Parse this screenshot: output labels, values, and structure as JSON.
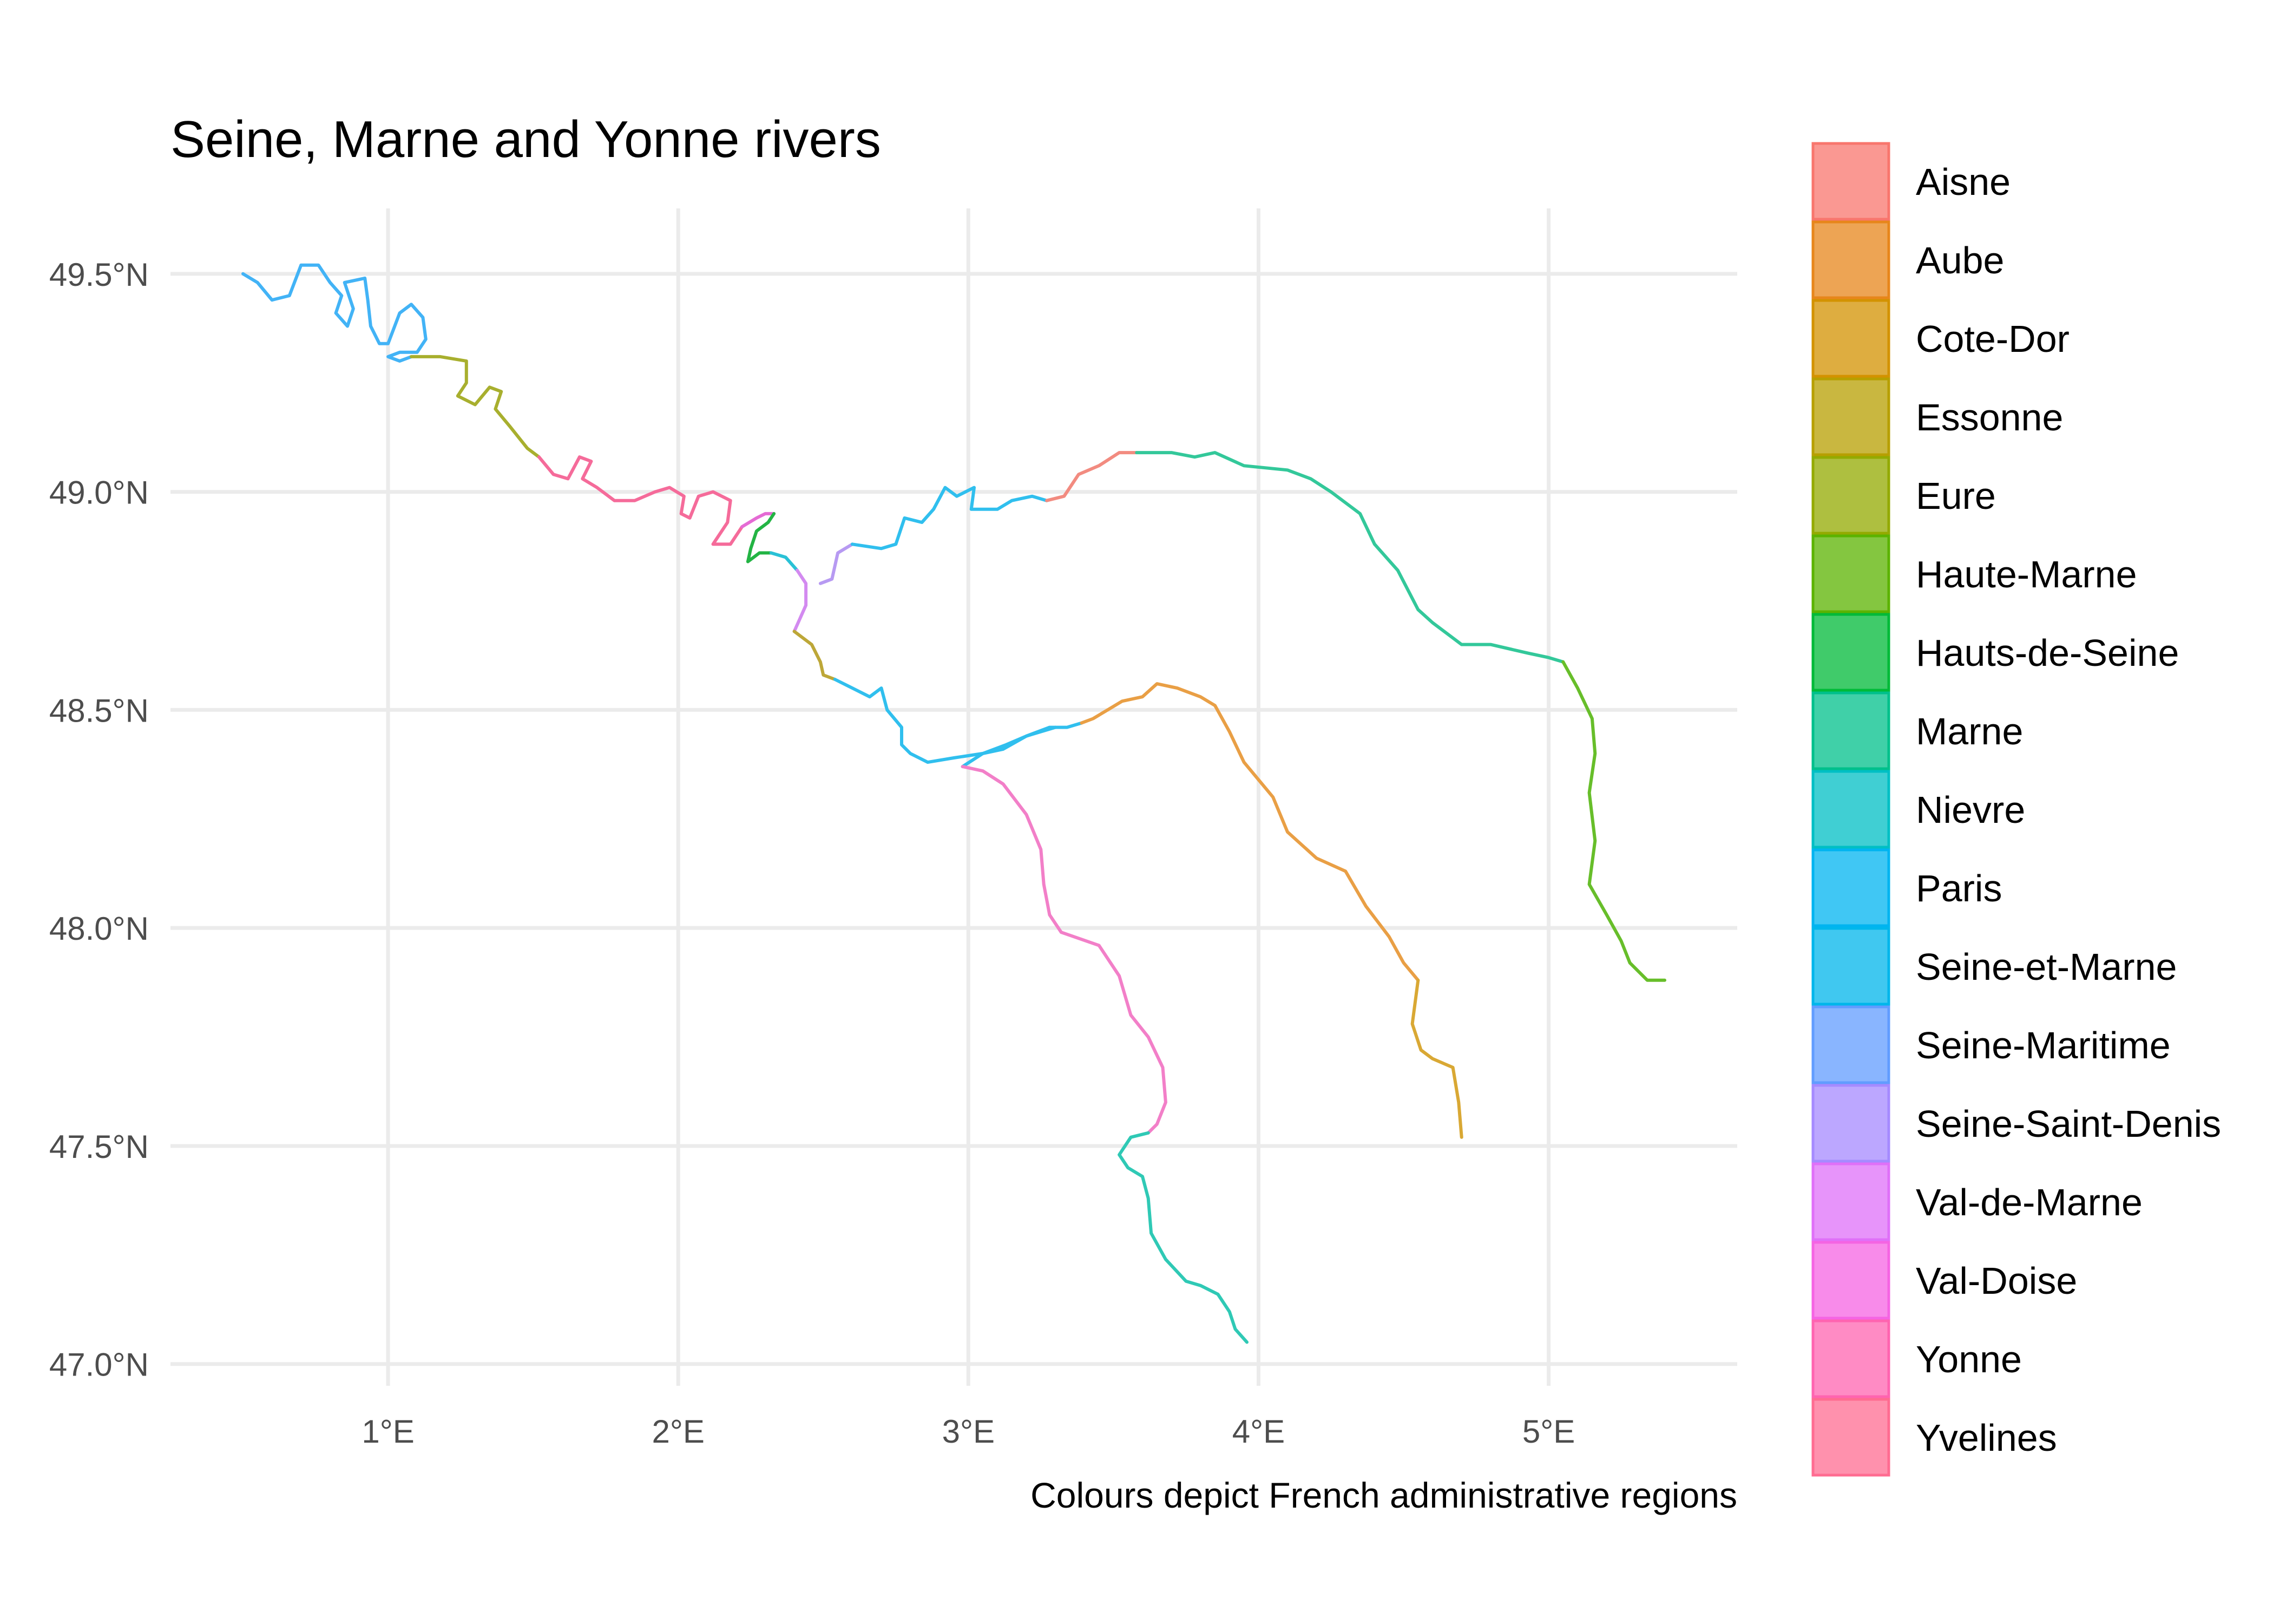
{
  "title": "Seine, Marne and Yonne rivers",
  "caption": "Colours depict French administrative regions",
  "chart_data": {
    "type": "map",
    "xlim": [
      0.25,
      5.65
    ],
    "ylim": [
      46.95,
      49.65
    ],
    "x_ticks": [
      {
        "value": 1,
        "label": "1°E"
      },
      {
        "value": 2,
        "label": "2°E"
      },
      {
        "value": 3,
        "label": "3°E"
      },
      {
        "value": 4,
        "label": "4°E"
      },
      {
        "value": 5,
        "label": "5°E"
      }
    ],
    "y_ticks": [
      {
        "value": 49.5,
        "label": "49.5°N"
      },
      {
        "value": 49.0,
        "label": "49.0°N"
      },
      {
        "value": 48.5,
        "label": "48.5°N"
      },
      {
        "value": 48.0,
        "label": "48.0°N"
      },
      {
        "value": 47.5,
        "label": "47.5°N"
      },
      {
        "value": 47.0,
        "label": "47.0°N"
      }
    ],
    "grid": true,
    "legend_position": "right",
    "legend": [
      {
        "name": "Aisne",
        "color": "#F8766D"
      },
      {
        "name": "Aube",
        "color": "#E7861B"
      },
      {
        "name": "Cote-Dor",
        "color": "#D39200"
      },
      {
        "name": "Essonne",
        "color": "#B79F00"
      },
      {
        "name": "Eure",
        "color": "#93AA00"
      },
      {
        "name": "Haute-Marne",
        "color": "#5BB300"
      },
      {
        "name": "Hauts-de-Seine",
        "color": "#00BA38"
      },
      {
        "name": "Marne",
        "color": "#00C08B"
      },
      {
        "name": "Nievre",
        "color": "#00BFC4"
      },
      {
        "name": "Paris",
        "color": "#00B4F0"
      },
      {
        "name": "Seine-et-Marne",
        "color": "#00B6EB"
      },
      {
        "name": "Seine-Maritime",
        "color": "#619CFF"
      },
      {
        "name": "Seine-Saint-Denis",
        "color": "#A58AFF"
      },
      {
        "name": "Val-de-Marne",
        "color": "#DF70F8"
      },
      {
        "name": "Val-Doise",
        "color": "#F564E3"
      },
      {
        "name": "Yonne",
        "color": "#FF64B0"
      },
      {
        "name": "Yvelines",
        "color": "#FF6C91"
      }
    ],
    "rivers": [
      {
        "region": "Seine-Maritime",
        "color": "#42B3F6",
        "points": [
          [
            0.5,
            49.5
          ],
          [
            0.55,
            49.48
          ],
          [
            0.6,
            49.44
          ],
          [
            0.66,
            49.45
          ],
          [
            0.7,
            49.52
          ],
          [
            0.76,
            49.52
          ],
          [
            0.8,
            49.48
          ],
          [
            0.84,
            49.45
          ],
          [
            0.82,
            49.41
          ],
          [
            0.86,
            49.38
          ],
          [
            0.88,
            49.42
          ],
          [
            0.85,
            49.48
          ],
          [
            0.92,
            49.49
          ],
          [
            0.93,
            49.44
          ],
          [
            0.94,
            49.38
          ],
          [
            0.97,
            49.34
          ],
          [
            1.0,
            49.34
          ],
          [
            1.04,
            49.41
          ],
          [
            1.08,
            49.43
          ],
          [
            1.12,
            49.4
          ],
          [
            1.13,
            49.35
          ],
          [
            1.1,
            49.32
          ],
          [
            1.04,
            49.32
          ],
          [
            1.0,
            49.31
          ],
          [
            1.04,
            49.3
          ],
          [
            1.08,
            49.31
          ]
        ]
      },
      {
        "region": "Eure",
        "color": "#A8AF2E",
        "points": [
          [
            1.08,
            49.31
          ],
          [
            1.18,
            49.31
          ],
          [
            1.27,
            49.3
          ],
          [
            1.27,
            49.25
          ],
          [
            1.24,
            49.22
          ],
          [
            1.3,
            49.2
          ],
          [
            1.35,
            49.24
          ],
          [
            1.39,
            49.23
          ],
          [
            1.37,
            49.19
          ],
          [
            1.42,
            49.15
          ],
          [
            1.48,
            49.1
          ],
          [
            1.52,
            49.08
          ]
        ]
      },
      {
        "region": "Yvelines",
        "color": "#F56B9A",
        "points": [
          [
            1.52,
            49.08
          ],
          [
            1.57,
            49.04
          ],
          [
            1.62,
            49.03
          ],
          [
            1.66,
            49.08
          ],
          [
            1.7,
            49.07
          ],
          [
            1.67,
            49.03
          ],
          [
            1.72,
            49.01
          ],
          [
            1.78,
            48.98
          ],
          [
            1.85,
            48.98
          ],
          [
            1.92,
            49.0
          ],
          [
            1.97,
            49.01
          ],
          [
            2.02,
            48.99
          ],
          [
            2.01,
            48.95
          ],
          [
            2.04,
            48.94
          ],
          [
            2.07,
            48.99
          ],
          [
            2.12,
            49.0
          ],
          [
            2.18,
            48.98
          ],
          [
            2.17,
            48.93
          ],
          [
            2.12,
            48.88
          ],
          [
            2.18,
            48.88
          ],
          [
            2.22,
            48.92
          ]
        ]
      },
      {
        "region": "Val-Doise",
        "color": "#E56BD4",
        "points": [
          [
            2.22,
            48.92
          ],
          [
            2.27,
            48.94
          ],
          [
            2.3,
            48.95
          ],
          [
            2.33,
            48.95
          ]
        ]
      },
      {
        "region": "Hauts-de-Seine",
        "color": "#23B444",
        "points": [
          [
            2.33,
            48.95
          ],
          [
            2.31,
            48.93
          ],
          [
            2.27,
            48.91
          ],
          [
            2.25,
            48.87
          ],
          [
            2.24,
            48.84
          ],
          [
            2.28,
            48.86
          ],
          [
            2.32,
            48.86
          ]
        ]
      },
      {
        "region": "Paris",
        "color": "#29C1D6",
        "points": [
          [
            2.32,
            48.86
          ],
          [
            2.37,
            48.85
          ],
          [
            2.41,
            48.82
          ]
        ]
      },
      {
        "region": "Val-de-Marne",
        "color": "#D38AF0",
        "points": [
          [
            2.41,
            48.82
          ],
          [
            2.44,
            48.79
          ],
          [
            2.44,
            48.74
          ],
          [
            2.42,
            48.71
          ],
          [
            2.4,
            48.68
          ]
        ]
      },
      {
        "region": "Seine-Saint-Denis",
        "color": "#B79AF2",
        "points": [
          [
            2.49,
            48.79
          ],
          [
            2.53,
            48.8
          ],
          [
            2.55,
            48.86
          ],
          [
            2.6,
            48.88
          ]
        ]
      },
      {
        "region": "Seine-et-Marne",
        "color": "#30BFEE",
        "points": [
          [
            2.6,
            48.88
          ],
          [
            2.7,
            48.87
          ],
          [
            2.75,
            48.88
          ],
          [
            2.78,
            48.94
          ],
          [
            2.84,
            48.93
          ],
          [
            2.88,
            48.96
          ],
          [
            2.92,
            49.01
          ],
          [
            2.96,
            48.99
          ],
          [
            3.02,
            49.01
          ],
          [
            3.01,
            48.96
          ],
          [
            3.1,
            48.96
          ],
          [
            3.15,
            48.98
          ],
          [
            3.22,
            48.99
          ],
          [
            3.27,
            48.98
          ]
        ]
      },
      {
        "region": "Aisne",
        "color": "#F28B80",
        "points": [
          [
            3.27,
            48.98
          ],
          [
            3.33,
            48.99
          ],
          [
            3.38,
            49.04
          ],
          [
            3.45,
            49.06
          ],
          [
            3.52,
            49.09
          ],
          [
            3.58,
            49.09
          ]
        ]
      },
      {
        "region": "Marne",
        "color": "#33C89A",
        "points": [
          [
            3.58,
            49.09
          ],
          [
            3.7,
            49.09
          ],
          [
            3.78,
            49.08
          ],
          [
            3.85,
            49.09
          ],
          [
            3.95,
            49.06
          ],
          [
            4.1,
            49.05
          ],
          [
            4.18,
            49.03
          ],
          [
            4.25,
            49.0
          ],
          [
            4.35,
            48.95
          ],
          [
            4.4,
            48.88
          ],
          [
            4.48,
            48.82
          ],
          [
            4.55,
            48.73
          ],
          [
            4.6,
            48.7
          ],
          [
            4.7,
            48.65
          ],
          [
            4.8,
            48.65
          ],
          [
            4.93,
            48.63
          ],
          [
            5.0,
            48.62
          ],
          [
            5.05,
            48.61
          ]
        ]
      },
      {
        "region": "Haute-Marne",
        "color": "#67BE2A",
        "points": [
          [
            5.05,
            48.61
          ],
          [
            5.1,
            48.55
          ],
          [
            5.15,
            48.48
          ],
          [
            5.16,
            48.4
          ],
          [
            5.14,
            48.31
          ],
          [
            5.16,
            48.2
          ],
          [
            5.14,
            48.1
          ],
          [
            5.2,
            48.03
          ],
          [
            5.25,
            47.97
          ],
          [
            5.28,
            47.92
          ],
          [
            5.34,
            47.88
          ],
          [
            5.4,
            47.88
          ]
        ]
      },
      {
        "region": "Essonne",
        "color": "#BDA738",
        "points": [
          [
            2.4,
            48.68
          ],
          [
            2.46,
            48.65
          ],
          [
            2.49,
            48.61
          ],
          [
            2.5,
            48.58
          ],
          [
            2.54,
            48.57
          ]
        ]
      },
      {
        "region": "Seine-et-Marne",
        "color": "#30BFEE",
        "points": [
          [
            2.54,
            48.57
          ],
          [
            2.6,
            48.55
          ],
          [
            2.66,
            48.53
          ],
          [
            2.7,
            48.55
          ],
          [
            2.72,
            48.5
          ],
          [
            2.77,
            48.46
          ],
          [
            2.77,
            48.42
          ],
          [
            2.8,
            48.4
          ],
          [
            2.86,
            48.38
          ],
          [
            2.95,
            48.39
          ],
          [
            3.05,
            48.4
          ],
          [
            3.12,
            48.41
          ],
          [
            3.2,
            48.44
          ],
          [
            3.28,
            48.46
          ],
          [
            3.34,
            48.46
          ],
          [
            3.39,
            48.47
          ]
        ]
      },
      {
        "region": "Aube",
        "color": "#E99F45",
        "points": [
          [
            3.39,
            48.47
          ],
          [
            3.43,
            48.48
          ],
          [
            3.48,
            48.5
          ],
          [
            3.53,
            48.52
          ],
          [
            3.6,
            48.53
          ],
          [
            3.65,
            48.56
          ],
          [
            3.72,
            48.55
          ],
          [
            3.8,
            48.53
          ],
          [
            3.85,
            48.51
          ],
          [
            3.9,
            48.45
          ],
          [
            3.95,
            48.38
          ],
          [
            4.05,
            48.3
          ],
          [
            4.1,
            48.22
          ],
          [
            4.2,
            48.16
          ],
          [
            4.3,
            48.13
          ],
          [
            4.37,
            48.05
          ],
          [
            4.45,
            47.98
          ],
          [
            4.5,
            47.92
          ],
          [
            4.55,
            47.88
          ]
        ]
      },
      {
        "region": "Cote-Dor",
        "color": "#D9A834",
        "points": [
          [
            4.55,
            47.88
          ],
          [
            4.53,
            47.78
          ],
          [
            4.56,
            47.72
          ],
          [
            4.6,
            47.7
          ],
          [
            4.67,
            47.68
          ],
          [
            4.69,
            47.6
          ],
          [
            4.7,
            47.52
          ]
        ]
      },
      {
        "region": "Seine-et-Marne",
        "color": "#30BFEE",
        "points": [
          [
            3.3,
            48.46
          ],
          [
            3.2,
            48.44
          ],
          [
            3.13,
            48.42
          ],
          [
            3.05,
            48.4
          ],
          [
            2.98,
            48.37
          ]
        ]
      },
      {
        "region": "Yonne",
        "color": "#F27FC8",
        "points": [
          [
            2.98,
            48.37
          ],
          [
            3.05,
            48.36
          ],
          [
            3.12,
            48.33
          ],
          [
            3.2,
            48.26
          ],
          [
            3.25,
            48.18
          ],
          [
            3.26,
            48.1
          ],
          [
            3.28,
            48.03
          ],
          [
            3.32,
            47.99
          ],
          [
            3.45,
            47.96
          ],
          [
            3.52,
            47.89
          ],
          [
            3.56,
            47.8
          ],
          [
            3.62,
            47.75
          ],
          [
            3.67,
            47.68
          ],
          [
            3.68,
            47.6
          ],
          [
            3.65,
            47.55
          ],
          [
            3.62,
            47.53
          ]
        ]
      },
      {
        "region": "Nievre",
        "color": "#2FC9B5",
        "points": [
          [
            3.62,
            47.53
          ],
          [
            3.56,
            47.52
          ],
          [
            3.52,
            47.48
          ],
          [
            3.55,
            47.45
          ],
          [
            3.6,
            47.43
          ],
          [
            3.62,
            47.38
          ],
          [
            3.63,
            47.3
          ],
          [
            3.68,
            47.24
          ],
          [
            3.75,
            47.19
          ],
          [
            3.8,
            47.18
          ],
          [
            3.86,
            47.16
          ],
          [
            3.9,
            47.12
          ],
          [
            3.92,
            47.08
          ],
          [
            3.96,
            47.05
          ]
        ]
      }
    ]
  }
}
